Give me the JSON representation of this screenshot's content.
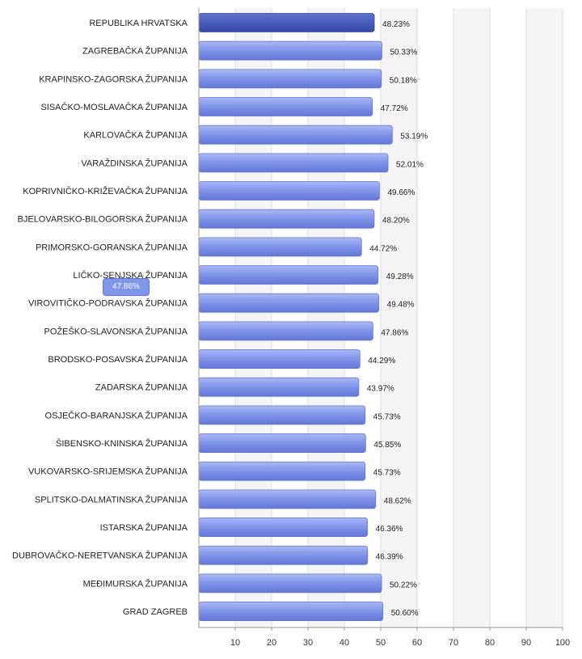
{
  "chart_data": {
    "type": "bar",
    "orientation": "horizontal",
    "categories": [
      "REPUBLIKA HRVATSKA",
      "ZAGREBAČKA ŽUPANIJA",
      "KRAPINSKO-ZAGORSKA ŽUPANIJA",
      "SISAČKO-MOSLAVAČKA ŽUPANIJA",
      "KARLOVAČKA ŽUPANIJA",
      "VARAŽDINSKA ŽUPANIJA",
      "KOPRIVNIČKO-KRIŽEVAČKA ŽUPANIJA",
      "BJELOVARSKO-BILOGORSKA ŽUPANIJA",
      "PRIMORSKO-GORANSKA ŽUPANIJA",
      "LIČKO-SENJSKA ŽUPANIJA",
      "VIROVITIČKO-PODRAVSKA ŽUPANIJA",
      "POŽEŠKO-SLAVONSKA ŽUPANIJA",
      "BRODSKO-POSAVSKA ŽUPANIJA",
      "ZADARSKA ŽUPANIJA",
      "OSJEČKO-BARANJSKA ŽUPANIJA",
      "ŠIBENSKO-KNINSKA ŽUPANIJA",
      "VUKOVARSKO-SRIJEMSKA ŽUPANIJA",
      "SPLITSKO-DALMATINSKA ŽUPANIJA",
      "ISTARSKA ŽUPANIJA",
      "DUBROVAČKO-NERETVANSKA ŽUPANIJA",
      "MEĐIMURSKA ŽUPANIJA",
      "GRAD ZAGREB"
    ],
    "values": [
      48.23,
      50.33,
      50.18,
      47.72,
      53.19,
      52.01,
      49.66,
      48.2,
      44.72,
      49.28,
      49.48,
      47.86,
      44.29,
      43.97,
      45.73,
      45.85,
      45.73,
      48.62,
      46.36,
      46.39,
      50.22,
      50.6
    ],
    "value_labels": [
      "48.23%",
      "50.33%",
      "50.18%",
      "47.72%",
      "53.19%",
      "52.01%",
      "49.66%",
      "48.20%",
      "44.72%",
      "49.28%",
      "49.48%",
      "47.86%",
      "44.29%",
      "43.97%",
      "45.73%",
      "45.85%",
      "45.73%",
      "48.62%",
      "46.36%",
      "46.39%",
      "50.22%",
      "50.60%"
    ],
    "xlim": [
      0,
      100
    ],
    "x_ticks": [
      10,
      20,
      30,
      40,
      50,
      60,
      70,
      80,
      90,
      100
    ],
    "grid": true,
    "title": "",
    "xlabel": "",
    "ylabel": "",
    "highlight_index": 0,
    "colors": {
      "bar": "#8296ea",
      "bar_light": "#aab9f5",
      "bar_dark": "#6277d8",
      "highlight": "#3548a8",
      "highlight_light": "#5e72cc",
      "grid": "#dddddd",
      "axis": "#999999",
      "stripe": "#f5f5f5"
    }
  },
  "tooltip": {
    "text": "47.86%"
  }
}
